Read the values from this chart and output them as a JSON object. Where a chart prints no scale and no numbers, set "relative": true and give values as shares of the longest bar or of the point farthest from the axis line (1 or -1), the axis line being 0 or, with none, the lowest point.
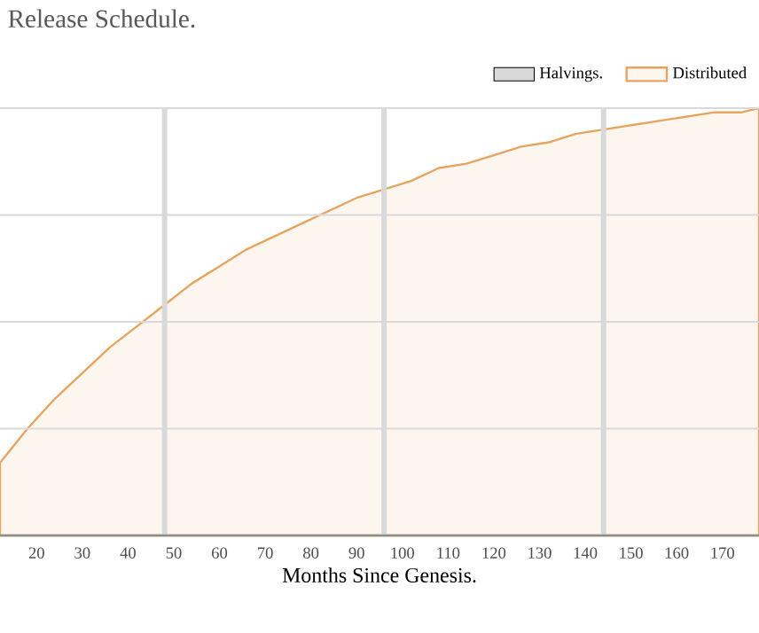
{
  "chart_data": {
    "type": "area",
    "title": "Release Schedule.",
    "xlabel": "Months Since Genesis.",
    "relative": true,
    "grid": "y",
    "legend": "top right",
    "xlim": [
      12,
      178
    ],
    "xticks": [
      20,
      30,
      40,
      50,
      60,
      70,
      80,
      90,
      100,
      110,
      120,
      130,
      140,
      150,
      160,
      170
    ],
    "ref_lines": [
      {
        "axis": "x",
        "value": 48,
        "label": "Halvings.",
        "color": "#d9d9d9"
      },
      {
        "axis": "x",
        "value": 96,
        "color": "#d9d9d9"
      },
      {
        "axis": "x",
        "value": 144,
        "color": "#d9d9d9"
      }
    ],
    "series": [
      {
        "name": "Distributed",
        "color": "#e5a560",
        "x": [
          12,
          18,
          24,
          30,
          36,
          42,
          48,
          54,
          60,
          66,
          72,
          78,
          84,
          90,
          96,
          102,
          108,
          114,
          120,
          126,
          132,
          138,
          144,
          150,
          156,
          162,
          168,
          174,
          178
        ],
        "values": [
          0.17,
          0.25,
          0.32,
          0.38,
          0.44,
          0.49,
          0.54,
          0.59,
          0.63,
          0.67,
          0.7,
          0.73,
          0.76,
          0.79,
          0.81,
          0.83,
          0.86,
          0.87,
          0.89,
          0.91,
          0.92,
          0.94,
          0.95,
          0.96,
          0.97,
          0.98,
          0.99,
          0.99,
          1
        ]
      }
    ]
  }
}
